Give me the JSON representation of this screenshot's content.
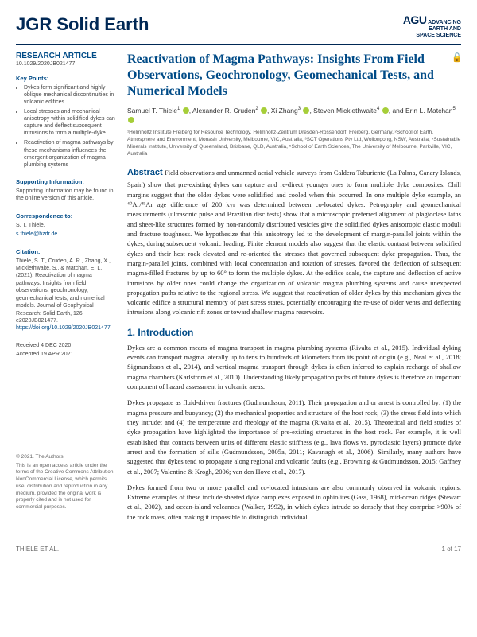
{
  "header": {
    "journal_prefix": "JGR",
    "journal_name": "Solid Earth",
    "publisher_top": "ADVANCING",
    "publisher_mid": "EARTH AND",
    "publisher_bot": "SPACE SCIENCE",
    "agu": "AGU"
  },
  "sidebar": {
    "article_type": "RESEARCH ARTICLE",
    "doi": "10.1029/2020JB021477",
    "keypoints_heading": "Key Points:",
    "keypoints": [
      "Dykes form significant and highly oblique mechanical discontinuities in volcanic edifices",
      "Local stresses and mechanical anisotropy within solidified dykes can capture and deflect subsequent intrusions to form a multiple-dyke",
      "Reactivation of magma pathways by these mechanisms influences the emergent organization of magma plumbing systems"
    ],
    "supporting_heading": "Supporting Information:",
    "supporting_text": "Supporting Information may be found in the online version of this article.",
    "correspondence_heading": "Correspondence to:",
    "correspondence_name": "S. T. Thiele,",
    "correspondence_email": "s.thiele@hzdr.de",
    "citation_heading": "Citation:",
    "citation_text": "Thiele, S. T., Cruden, A. R., Zhang, X., Micklethwaite, S., & Matchan, E. L. (2021). Reactivation of magma pathways: Insights from field observations, geochronology, geomechanical tests, and numerical models. Journal of Geophysical Research: Solid Earth, 126, e2020JB021477. ",
    "citation_link": "https://doi.org/10.1029/2020JB021477",
    "received": "Received 4 DEC 2020",
    "accepted": "Accepted 19 APR 2021",
    "copyright_line": "© 2021. The Authors.",
    "copyright_text": "This is an open access article under the terms of the Creative Commons Attribution-NonCommercial License, which permits use, distribution and reproduction in any medium, provided the original work is properly cited and is not used for commercial purposes."
  },
  "article": {
    "title": "Reactivation of Magma Pathways: Insights From Field Observations, Geochronology, Geomechanical Tests, and Numerical Models",
    "authors_html": "Samuel T. Thiele<sup>1</sup> <span class='orcid'></span>, Alexander R. Cruden<sup>2</sup> <span class='orcid'></span>, Xi Zhang<sup>3</sup> <span class='orcid'></span>, Steven Micklethwaite<sup>4</sup> <span class='orcid'></span>, and Erin L. Matchan<sup>5</sup> <span class='orcid'></span>",
    "affiliations": "¹Helmholtz Institute Freiberg for Resource Technology, Helmholtz-Zentrum Dresden-Rossendorf, Freiberg, Germany, ²School of Earth, Atmosphere and Environment, Monash University, Melbourne, VIC, Australia, ³SCT Operations Pty Ltd, Wollongong, NSW, Australia, ⁴Sustainable Minerals Institute, University of Queensland, Brisbane, QLD, Australia, ⁵School of Earth Sciences, The University of Melbourne, Parkville, VIC, Australia",
    "abstract_label": "Abstract",
    "abstract": " Field observations and unmanned aerial vehicle surveys from Caldera Taburiente (La Palma, Canary Islands, Spain) show that pre-existing dykes can capture and re-direct younger ones to form multiple dyke composites. Chill margins suggest that the older dykes were solidified and cooled when this occurred. In one multiple dyke example, an ⁴⁰Ar/³⁹Ar age difference of 200 kyr was determined between co-located dykes. Petrography and geomechanical measurements (ultrasonic pulse and Brazilian disc tests) show that a microscopic preferred alignment of plagioclase laths and sheet-like structures formed by non-randomly distributed vesicles give the solidified dykes anisotropic elastic moduli and fracture toughness. We hypothesize that this anisotropy led to the development of margin-parallel joints within the dykes, during subsequent volcanic loading. Finite element models also suggest that the elastic contrast between solidified dykes and their host rock elevated and re-oriented the stresses that governed subsequent dyke propagation. Thus, the margin-parallel joints, combined with local concentration and rotation of stresses, favored the deflection of subsequent magma-filled fractures by up to 60° to form the multiple dykes. At the edifice scale, the capture and deflection of active intrusions by older ones could change the organization of volcanic magma plumbing systems and cause unexpected propagation paths relative to the regional stress. We suggest that reactivation of older dykes by this mechanism gives the volcanic edifice a structural memory of past stress states, potentially encouraging the re-use of older vents and deflecting intrusions along volcanic rift zones or toward shallow magma reservoirs.",
    "section1_heading": "1. Introduction",
    "para1": "Dykes are a common means of magma transport in magma plumbing systems (Rivalta et al., 2015). Individual dyking events can transport magma laterally up to tens to hundreds of kilometers from its point of origin (e.g., Neal et al., 2018; Sigmundsson et al., 2014), and vertical magma transport through dykes is often inferred to explain recharge of shallow magma chambers (Karlstrom et al., 2010). Understanding likely propagation paths of future dykes is therefore an important component of hazard assessment in volcanic areas.",
    "para2": "Dykes propagate as fluid-driven fractures (Gudmundsson, 2011). Their propagation and or arrest is controlled by: (1) the magma pressure and buoyancy; (2) the mechanical properties and structure of the host rock; (3) the stress field into which they intrude; and (4) the temperature and rheology of the magma (Rivalta et al., 2015). Theoretical and field studies of dyke propagation have highlighted the importance of pre-existing structures in the host rock. For example, it is well established that contacts between units of different elastic stiffness (e.g., lava flows vs. pyroclastic layers) promote dyke arrest and the formation of sills (Gudmundsson, 2005a, 2011; Kavanagh et al., 2006). Similarly, many authors have suggested that dykes tend to propagate along regional and volcanic faults (e.g., Browning & Gudmundsson, 2015; Gaffney et al., 2007; Valentine & Krogh, 2006; van den Hove et al., 2017).",
    "para3": "Dykes formed from two or more parallel and co-located intrusions are also commonly observed in volcanic regions. Extreme examples of these include sheeted dyke complexes exposed in ophiolites (Gass, 1968), mid-ocean ridges (Stewart et al., 2002), and ocean-island volcanoes (Walker, 1992), in which dykes intrude so densely that they comprise >90% of the rock mass, often making it impossible to distinguish individual"
  },
  "footer": {
    "left": "THIELE ET AL.",
    "right": "1 of 17"
  },
  "colors": {
    "brand_blue": "#004b87",
    "dark_blue": "#002855",
    "orcid_green": "#a6ce39",
    "lock_gold": "#d4a017"
  }
}
